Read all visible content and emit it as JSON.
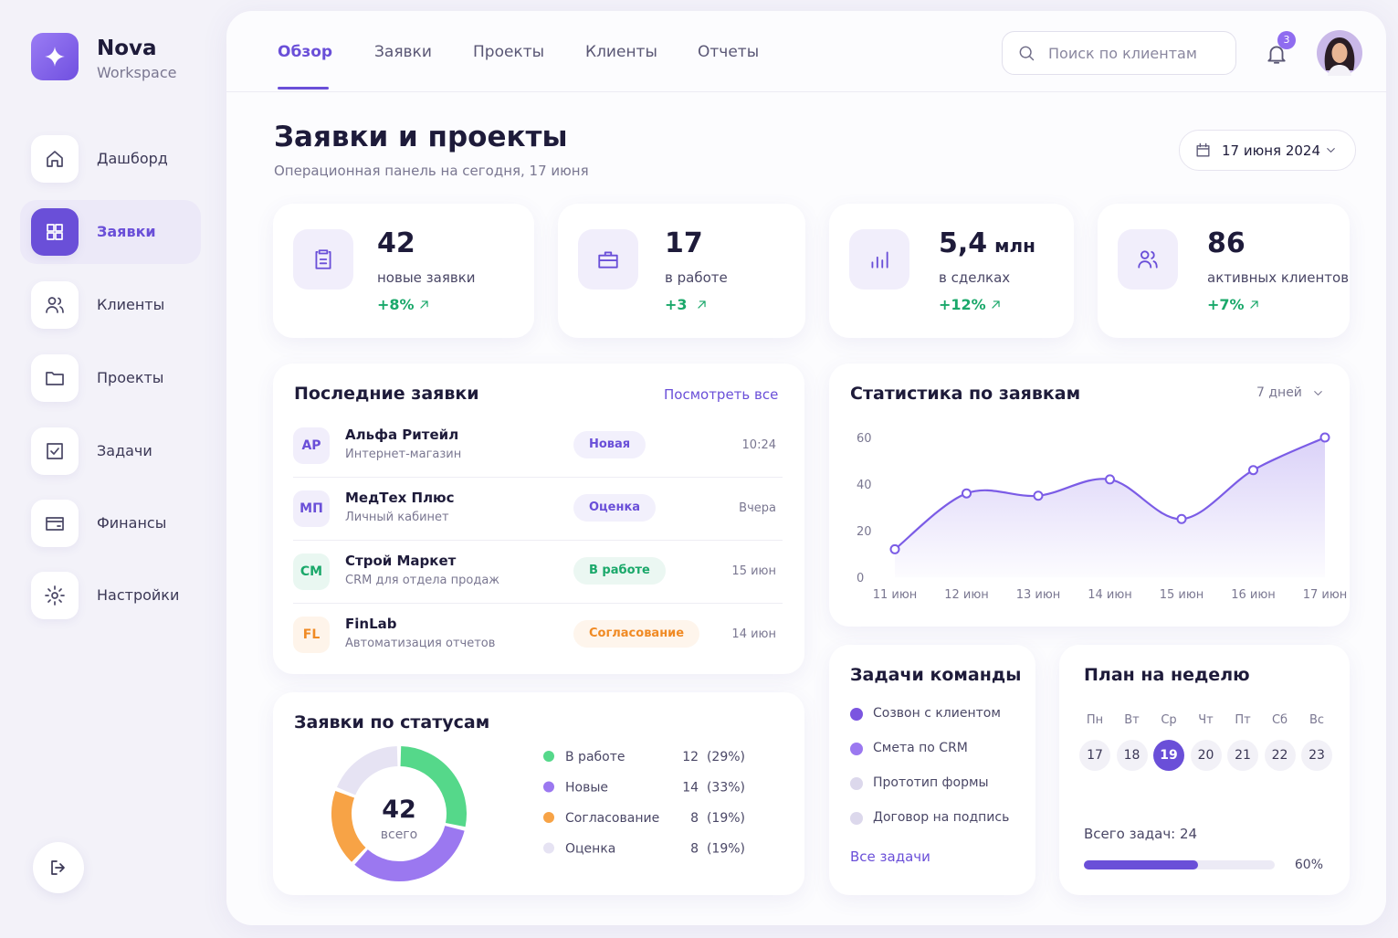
{
  "sidebar": {
    "brand": "Nova",
    "subtitle": "Workspace",
    "items": [
      "Дашборд",
      "Заявки",
      "Клиенты",
      "Проекты",
      "Задачи",
      "Финансы",
      "Настройки"
    ],
    "active": 1
  },
  "nav": {
    "tabs": [
      "Обзор",
      "Заявки",
      "Проекты",
      "Клиенты",
      "Отчеты"
    ],
    "active": 0,
    "search_placeholder": "Поиск по клиентам",
    "notifications": 3
  },
  "header": {
    "title": "Заявки и проекты",
    "subtitle": "Операционная панель на сегодня, 17 июня",
    "date": "17 июня 2024"
  },
  "kpis": [
    {
      "value": "42",
      "label": "новые заявки",
      "change": "+8%"
    },
    {
      "value": "17",
      "label": "в работе",
      "change": "+3"
    },
    {
      "value": "5,4",
      "unit": "млн",
      "label": "в сделках",
      "change": "+12%"
    },
    {
      "value": "86",
      "label": "активных клиентов",
      "change": "+7%"
    }
  ],
  "recent": {
    "title": "Последние заявки",
    "link": "Посмотреть все",
    "rows": [
      {
        "initials": "АР",
        "name": "Альфа Ритейл",
        "desc": "Интернет-магазин",
        "status": "Новая",
        "time": "10:24",
        "color": "#6a4fd8"
      },
      {
        "initials": "МП",
        "name": "МедТех Плюс",
        "desc": "Личный кабинет",
        "status": "Оценка",
        "time": "Вчера",
        "color": "#6a4fd8"
      },
      {
        "initials": "СМ",
        "name": "Строй Маркет",
        "desc": "CRM для отдела продаж",
        "status": "В работе",
        "time": "15 июн",
        "color": "#1aa86a"
      },
      {
        "initials": "FL",
        "name": "FinLab",
        "desc": "Автоматизация отчетов",
        "status": "Согласование",
        "time": "14 июн",
        "color": "#f08a24"
      }
    ]
  },
  "chart_data": [
    {
      "type": "line",
      "title": "Статистика по заявкам",
      "period": "7 дней",
      "categories": [
        "11 июн",
        "12 июн",
        "13 июн",
        "14 июн",
        "15 июн",
        "16 июн",
        "17 июн"
      ],
      "values": [
        12,
        36,
        35,
        42,
        25,
        46,
        60
      ],
      "color": "#7b5ce6",
      "ylim": [
        0,
        60
      ],
      "yticks": [
        0,
        20,
        40,
        60
      ],
      "grid": false
    },
    {
      "type": "pie",
      "title": "Заявки по статусам",
      "center_value": "42",
      "center_label": "всего",
      "categories": [
        "В работе",
        "Новые",
        "Согласование",
        "Оценка"
      ],
      "values": [
        12,
        14,
        8,
        8
      ],
      "value_labels": [
        "12  (29%)",
        "14  (33%)",
        "8  (19%)",
        "8  (19%)"
      ],
      "colors": [
        "#55d88a",
        "#9b78f0",
        "#f7a346",
        "#e6e3f3"
      ]
    }
  ],
  "tasks": {
    "title": "Задачи команды",
    "link": "Все задачи",
    "items": [
      {
        "text": "Созвон с клиентом",
        "color": "#7b55e0"
      },
      {
        "text": "Смета по CRM",
        "color": "#9b78f0"
      },
      {
        "text": "Прототип формы",
        "color": "#dcd8ec"
      },
      {
        "text": "Договор на подпись",
        "color": "#dcd8ec"
      }
    ]
  },
  "plan": {
    "title": "План на неделю",
    "weekdays": [
      "Пн",
      "Вт",
      "Ср",
      "Чт",
      "Пт",
      "Сб",
      "Вс"
    ],
    "days": [
      "17",
      "18",
      "19",
      "20",
      "21",
      "22",
      "23"
    ],
    "selected": 2,
    "total": "Всего задач: 24",
    "progress": 60,
    "progress_label": "60%"
  }
}
